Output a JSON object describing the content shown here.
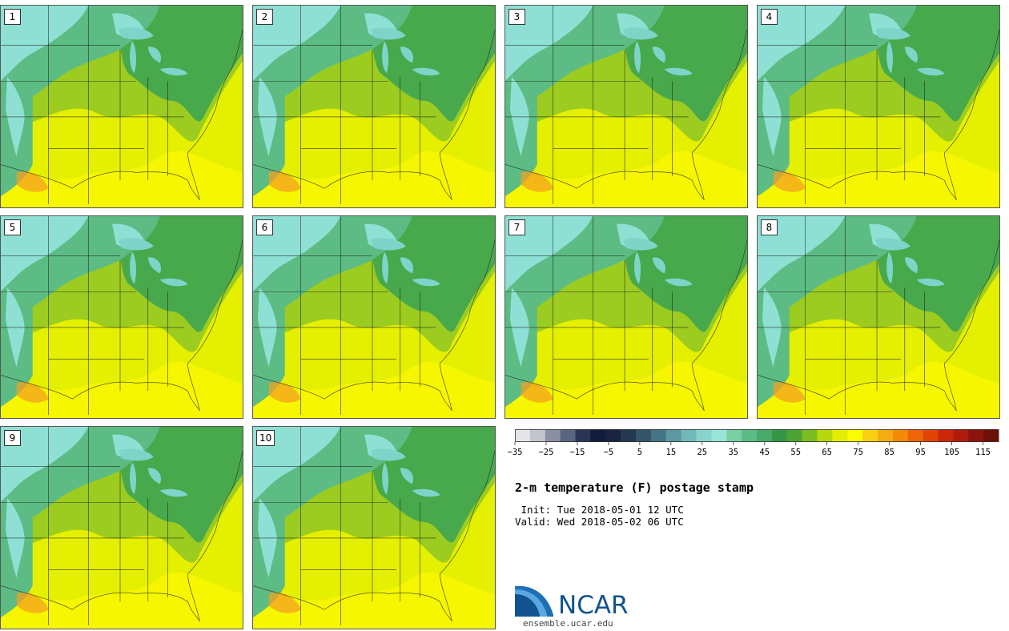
{
  "figure": {
    "title": "2-m temperature (F) postage stamp",
    "init_label": " Init: Tue 2018-05-01 12 UTC",
    "valid_label": "Valid: Wed 2018-05-02 06 UTC"
  },
  "members": [
    "1",
    "2",
    "3",
    "4",
    "5",
    "6",
    "7",
    "8",
    "9",
    "10"
  ],
  "colorbar": {
    "min": -35,
    "max": 120,
    "step": 5,
    "tick_labels": [
      "−35",
      "−25",
      "−15",
      "−5",
      "5",
      "15",
      "25",
      "35",
      "45",
      "55",
      "65",
      "75",
      "85",
      "95",
      "105",
      "115"
    ],
    "colors": [
      "#e3e5e8",
      "#c3c5cc",
      "#8a8fa3",
      "#5a6580",
      "#2a3555",
      "#121c3a",
      "#182442",
      "#24384f",
      "#34546a",
      "#447487",
      "#5c98a1",
      "#72b8b8",
      "#88d4cc",
      "#98e4d6",
      "#78d0a4",
      "#5cbc84",
      "#48aa68",
      "#369648",
      "#4ca432",
      "#7cbc1e",
      "#b6d80c",
      "#e2ec06",
      "#fcfc00",
      "#f8d014",
      "#f4ac10",
      "#f48a06",
      "#ee6408",
      "#e24408",
      "#cc2808",
      "#b01c0c",
      "#8c140c",
      "#6c1008"
    ]
  },
  "map_colors": {
    "cold": "#8fe0d4",
    "cool": "#5cbc84",
    "mild": "#48a84c",
    "warm": "#9ccc20",
    "hot": "#e4f000",
    "hottest": "#f6f600",
    "lake": "#7ed4c8",
    "hotspot": "#f4a020"
  },
  "logo": {
    "name": "NCAR",
    "url": "ensemble.ucar.edu"
  }
}
